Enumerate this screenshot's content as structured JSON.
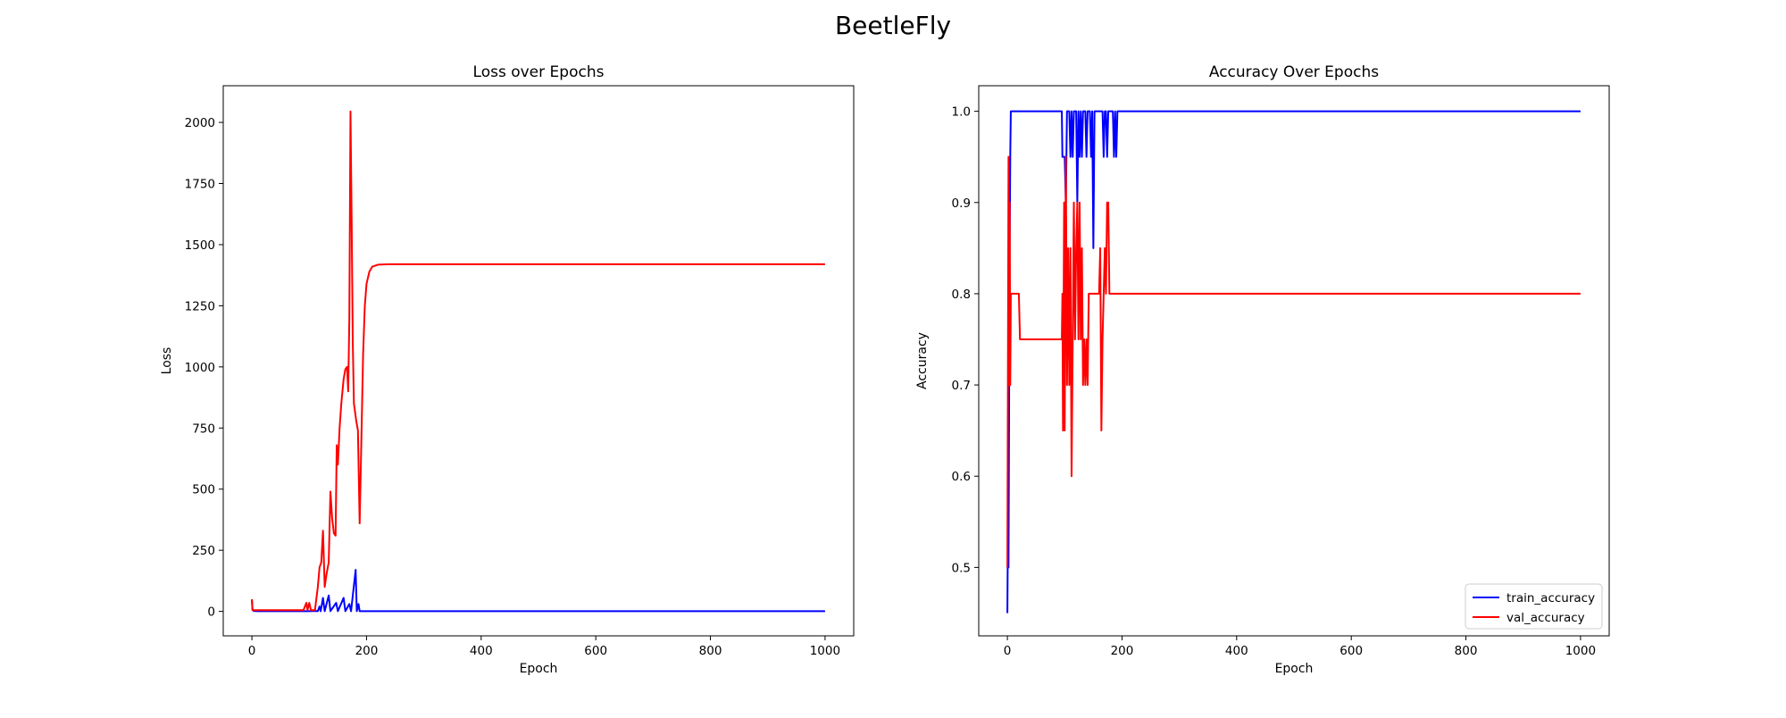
{
  "figure": {
    "suptitle": "BeetleFly"
  },
  "chart_data": [
    {
      "type": "line",
      "title": "Loss over Epochs",
      "xlabel": "Epoch",
      "ylabel": "Loss",
      "xlim": [
        -50,
        1050
      ],
      "ylim": [
        -100,
        2150
      ],
      "xticks": [
        0,
        200,
        400,
        600,
        800,
        1000
      ],
      "yticks": [
        0,
        250,
        500,
        750,
        1000,
        1250,
        1500,
        1750,
        2000
      ],
      "grid": false,
      "legend": null,
      "series": [
        {
          "color": "#0000ff",
          "points": [
            [
              0,
              45
            ],
            [
              1,
              8
            ],
            [
              3,
              2
            ],
            [
              10,
              1
            ],
            [
              60,
              1
            ],
            [
              100,
              1
            ],
            [
              110,
              2
            ],
            [
              115,
              1
            ],
            [
              118,
              20
            ],
            [
              120,
              1
            ],
            [
              124,
              55
            ],
            [
              127,
              1
            ],
            [
              134,
              65
            ],
            [
              137,
              1
            ],
            [
              147,
              35
            ],
            [
              150,
              1
            ],
            [
              160,
              55
            ],
            [
              163,
              1
            ],
            [
              170,
              30
            ],
            [
              173,
              1
            ],
            [
              181,
              170
            ],
            [
              183,
              1
            ],
            [
              186,
              30
            ],
            [
              188,
              1
            ],
            [
              200,
              1
            ],
            [
              1000,
              1
            ]
          ]
        },
        {
          "color": "#ff0000",
          "points": [
            [
              0,
              50
            ],
            [
              1,
              5
            ],
            [
              5,
              5
            ],
            [
              50,
              5
            ],
            [
              90,
              5
            ],
            [
              95,
              35
            ],
            [
              97,
              5
            ],
            [
              100,
              35
            ],
            [
              103,
              5
            ],
            [
              110,
              5
            ],
            [
              115,
              100
            ],
            [
              118,
              180
            ],
            [
              121,
              200
            ],
            [
              124,
              330
            ],
            [
              127,
              100
            ],
            [
              130,
              150
            ],
            [
              134,
              200
            ],
            [
              137,
              490
            ],
            [
              140,
              380
            ],
            [
              143,
              320
            ],
            [
              146,
              310
            ],
            [
              148,
              680
            ],
            [
              150,
              600
            ],
            [
              153,
              750
            ],
            [
              156,
              850
            ],
            [
              160,
              950
            ],
            [
              163,
              990
            ],
            [
              166,
              1000
            ],
            [
              168,
              900
            ],
            [
              170,
              1200
            ],
            [
              172,
              2045
            ],
            [
              174,
              1600
            ],
            [
              176,
              1100
            ],
            [
              178,
              850
            ],
            [
              182,
              780
            ],
            [
              185,
              740
            ],
            [
              188,
              360
            ],
            [
              191,
              700
            ],
            [
              194,
              1050
            ],
            [
              197,
              1250
            ],
            [
              200,
              1340
            ],
            [
              205,
              1390
            ],
            [
              210,
              1410
            ],
            [
              220,
              1418
            ],
            [
              240,
              1420
            ],
            [
              1000,
              1420
            ]
          ]
        }
      ]
    },
    {
      "type": "line",
      "title": "Accuracy Over Epochs",
      "xlabel": "Epoch",
      "ylabel": "Accuracy",
      "xlim": [
        -50,
        1050
      ],
      "ylim": [
        0.425,
        1.028
      ],
      "xticks": [
        0,
        200,
        400,
        600,
        800,
        1000
      ],
      "yticks": [
        0.5,
        0.6,
        0.7,
        0.8,
        0.9,
        1.0
      ],
      "grid": false,
      "legend": "lower-right",
      "series": [
        {
          "name": "train_accuracy",
          "color": "#0000ff",
          "points": [
            [
              0,
              0.45
            ],
            [
              1,
              0.55
            ],
            [
              2,
              0.5
            ],
            [
              4,
              0.85
            ],
            [
              5,
              0.95
            ],
            [
              6,
              1.0
            ],
            [
              95,
              1.0
            ],
            [
              96,
              0.95
            ],
            [
              100,
              0.95
            ],
            [
              102,
              0.9
            ],
            [
              104,
              1.0
            ],
            [
              108,
              1.0
            ],
            [
              110,
              0.95
            ],
            [
              112,
              1.0
            ],
            [
              114,
              0.95
            ],
            [
              116,
              1.0
            ],
            [
              120,
              1.0
            ],
            [
              122,
              0.9
            ],
            [
              124,
              1.0
            ],
            [
              126,
              0.95
            ],
            [
              128,
              1.0
            ],
            [
              130,
              0.95
            ],
            [
              132,
              1.0
            ],
            [
              136,
              1.0
            ],
            [
              138,
              0.95
            ],
            [
              140,
              1.0
            ],
            [
              144,
              1.0
            ],
            [
              146,
              0.95
            ],
            [
              148,
              1.0
            ],
            [
              150,
              0.85
            ],
            [
              152,
              1.0
            ],
            [
              166,
              1.0
            ],
            [
              168,
              0.95
            ],
            [
              170,
              1.0
            ],
            [
              172,
              1.0
            ],
            [
              174,
              0.95
            ],
            [
              176,
              1.0
            ],
            [
              184,
              1.0
            ],
            [
              186,
              0.95
            ],
            [
              188,
              1.0
            ],
            [
              190,
              0.95
            ],
            [
              192,
              1.0
            ],
            [
              1000,
              1.0
            ]
          ]
        },
        {
          "name": "val_accuracy",
          "color": "#ff0000",
          "points": [
            [
              0,
              0.5
            ],
            [
              2,
              0.95
            ],
            [
              3,
              0.7
            ],
            [
              4,
              0.9
            ],
            [
              5,
              0.7
            ],
            [
              6,
              0.8
            ],
            [
              20,
              0.8
            ],
            [
              22,
              0.75
            ],
            [
              95,
              0.75
            ],
            [
              96,
              0.8
            ],
            [
              97,
              0.65
            ],
            [
              99,
              0.9
            ],
            [
              100,
              0.65
            ],
            [
              102,
              0.95
            ],
            [
              104,
              0.7
            ],
            [
              106,
              0.85
            ],
            [
              108,
              0.7
            ],
            [
              110,
              0.85
            ],
            [
              112,
              0.6
            ],
            [
              114,
              0.75
            ],
            [
              116,
              0.9
            ],
            [
              118,
              0.75
            ],
            [
              120,
              0.85
            ],
            [
              122,
              0.9
            ],
            [
              124,
              0.75
            ],
            [
              126,
              0.9
            ],
            [
              128,
              0.75
            ],
            [
              130,
              0.85
            ],
            [
              132,
              0.7
            ],
            [
              134,
              0.75
            ],
            [
              136,
              0.7
            ],
            [
              138,
              0.75
            ],
            [
              140,
              0.7
            ],
            [
              142,
              0.8
            ],
            [
              160,
              0.8
            ],
            [
              162,
              0.85
            ],
            [
              164,
              0.65
            ],
            [
              166,
              0.75
            ],
            [
              168,
              0.8
            ],
            [
              170,
              0.85
            ],
            [
              172,
              0.8
            ],
            [
              174,
              0.9
            ],
            [
              176,
              0.9
            ],
            [
              178,
              0.8
            ],
            [
              1000,
              0.8
            ]
          ]
        }
      ]
    }
  ]
}
